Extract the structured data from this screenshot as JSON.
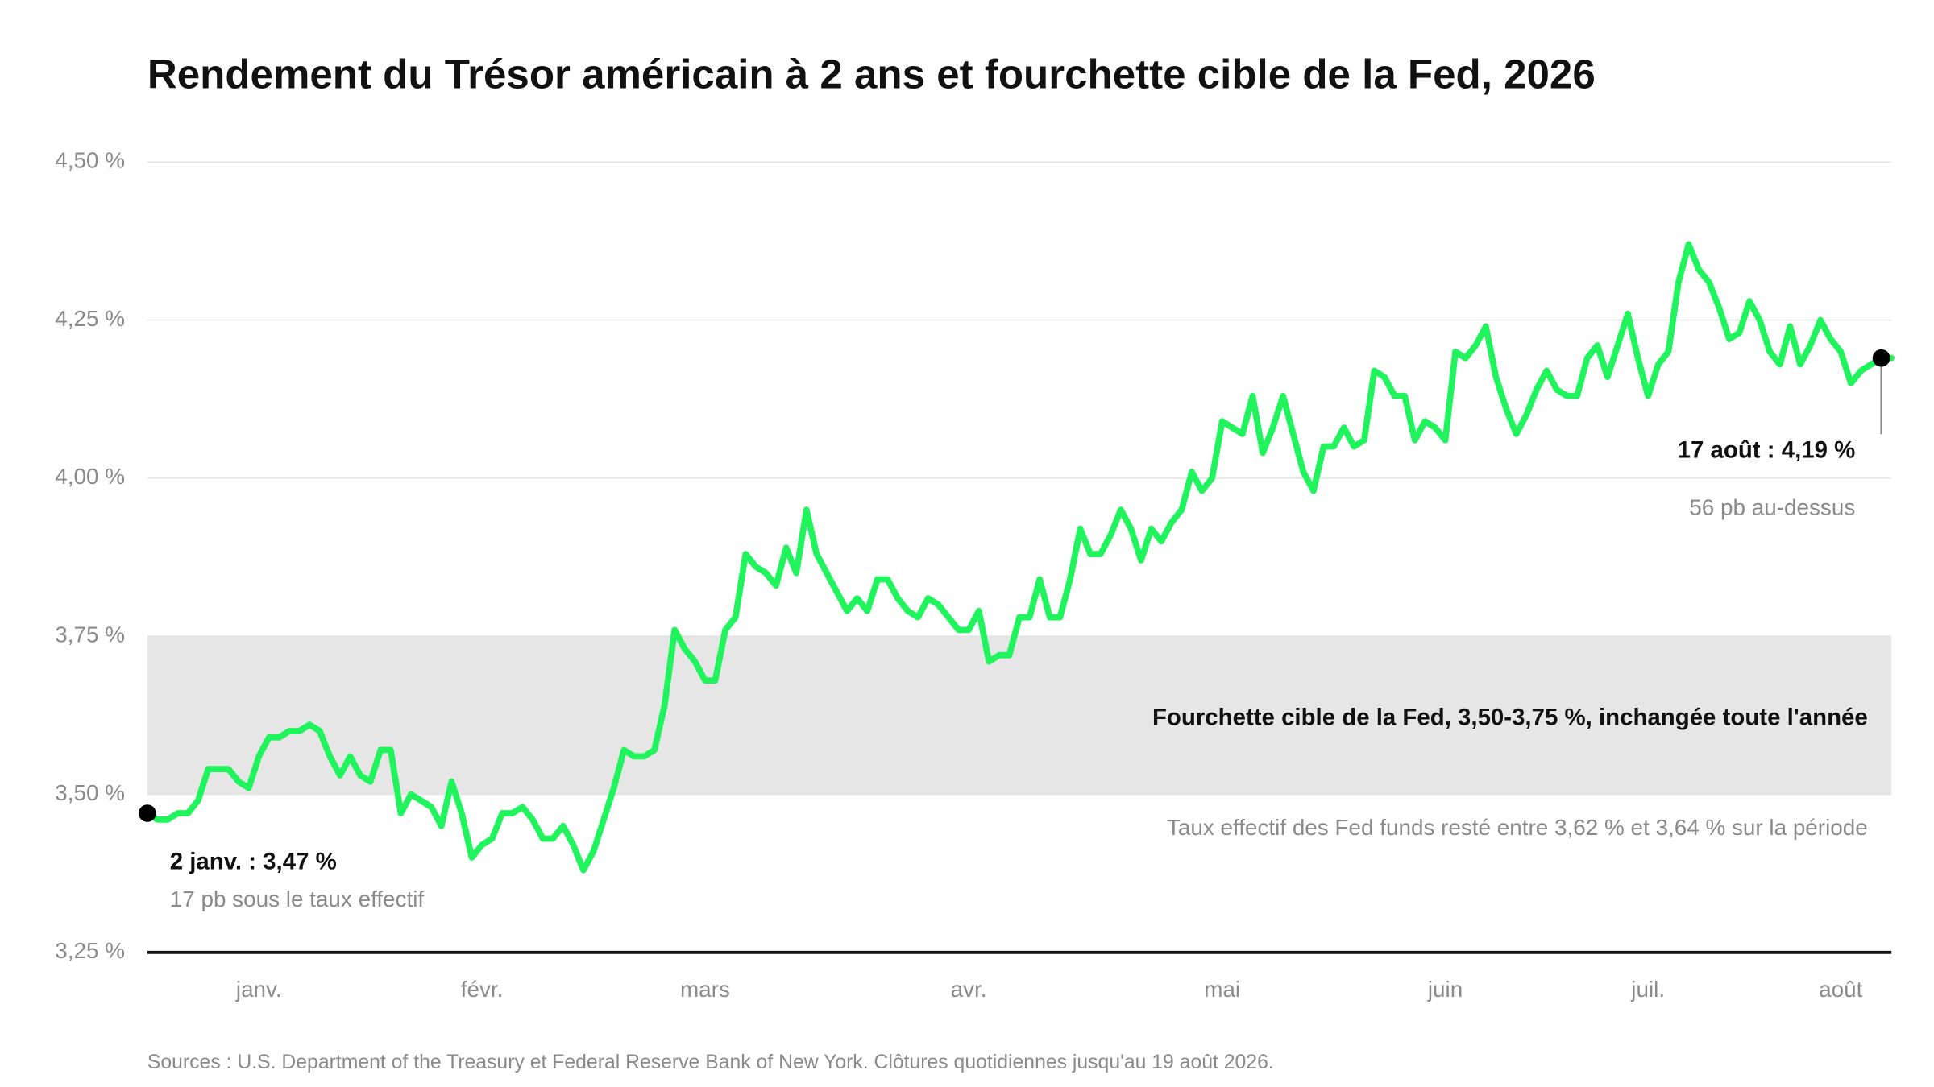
{
  "chart_data": {
    "type": "line",
    "title": "Rendement du Trésor américain à 2 ans et fourchette cible de la Fed, 2026",
    "categories": [
      null,
      null,
      null,
      null,
      null,
      null,
      null,
      null,
      null,
      null,
      null,
      "janv.",
      null,
      null,
      null,
      null,
      null,
      null,
      null,
      null,
      null,
      null,
      null,
      null,
      null,
      null,
      null,
      null,
      null,
      null,
      null,
      null,
      null,
      "févr.",
      null,
      null,
      null,
      null,
      null,
      null,
      null,
      null,
      null,
      null,
      null,
      null,
      null,
      null,
      null,
      null,
      null,
      null,
      null,
      null,
      null,
      "mars",
      null,
      null,
      null,
      null,
      null,
      null,
      null,
      null,
      null,
      null,
      null,
      null,
      null,
      null,
      null,
      null,
      null,
      null,
      null,
      null,
      null,
      null,
      null,
      null,
      null,
      "avr.",
      null,
      null,
      null,
      null,
      null,
      null,
      null,
      null,
      null,
      null,
      null,
      null,
      null,
      null,
      null,
      null,
      null,
      null,
      null,
      null,
      null,
      null,
      null,
      null,
      "mai",
      null,
      null,
      null,
      null,
      null,
      null,
      null,
      null,
      null,
      null,
      null,
      null,
      null,
      null,
      null,
      null,
      null,
      null,
      null,
      null,
      null,
      "juin",
      null,
      null,
      null,
      null,
      null,
      null,
      null,
      null,
      null,
      null,
      null,
      null,
      null,
      null,
      null,
      null,
      null,
      null,
      null,
      "juil.",
      null,
      null,
      null,
      null,
      null,
      null,
      null,
      null,
      null,
      null,
      null,
      null,
      null,
      null,
      null,
      null,
      null,
      null,
      "août",
      null,
      null,
      null,
      null,
      null
    ],
    "values": [
      3.47,
      3.46,
      3.46,
      3.47,
      3.47,
      3.49,
      3.54,
      3.54,
      3.54,
      3.52,
      3.51,
      3.56,
      3.59,
      3.59,
      3.6,
      3.6,
      3.61,
      3.6,
      3.56,
      3.53,
      3.56,
      3.53,
      3.52,
      3.57,
      3.57,
      3.47,
      3.5,
      3.49,
      3.48,
      3.45,
      3.52,
      3.47,
      3.4,
      3.42,
      3.43,
      3.47,
      3.47,
      3.48,
      3.46,
      3.43,
      3.43,
      3.45,
      3.42,
      3.38,
      3.41,
      3.46,
      3.51,
      3.57,
      3.56,
      3.56,
      3.57,
      3.64,
      3.76,
      3.73,
      3.71,
      3.68,
      3.68,
      3.76,
      3.78,
      3.88,
      3.86,
      3.85,
      3.83,
      3.89,
      3.85,
      3.95,
      3.88,
      3.85,
      3.82,
      3.79,
      3.81,
      3.79,
      3.84,
      3.84,
      3.81,
      3.79,
      3.78,
      3.81,
      3.8,
      3.78,
      3.76,
      3.76,
      3.79,
      3.71,
      3.72,
      3.72,
      3.78,
      3.78,
      3.84,
      3.78,
      3.78,
      3.84,
      3.92,
      3.88,
      3.88,
      3.91,
      3.95,
      3.92,
      3.87,
      3.92,
      3.9,
      3.93,
      3.95,
      4.01,
      3.98,
      4.0,
      4.09,
      4.08,
      4.07,
      4.13,
      4.04,
      4.08,
      4.13,
      4.07,
      4.01,
      3.98,
      4.05,
      4.05,
      4.08,
      4.05,
      4.06,
      4.17,
      4.16,
      4.13,
      4.13,
      4.06,
      4.09,
      4.08,
      4.06,
      4.2,
      4.19,
      4.21,
      4.24,
      4.16,
      4.11,
      4.07,
      4.1,
      4.14,
      4.17,
      4.14,
      4.13,
      4.13,
      4.19,
      4.21,
      4.16,
      4.21,
      4.26,
      4.19,
      4.13,
      4.18,
      4.2,
      4.31,
      4.37,
      4.33,
      4.31,
      4.27,
      4.22,
      4.23,
      4.28,
      4.25,
      4.2,
      4.18,
      4.24,
      4.18,
      4.21,
      4.25,
      4.22,
      4.2,
      4.15,
      4.17,
      4.18,
      4.19,
      4.19
    ],
    "color": "#1ff45c",
    "ylim": [
      3.25,
      4.5
    ],
    "yticks": [
      {
        "value": 3.25,
        "label": "3,25 %"
      },
      {
        "value": 3.5,
        "label": "3,50 %"
      },
      {
        "value": 3.75,
        "label": "3,75 %"
      },
      {
        "value": 4.0,
        "label": "4,00 %"
      },
      {
        "value": 4.25,
        "label": "4,25 %"
      },
      {
        "value": 4.5,
        "label": "4,50 %"
      }
    ],
    "grid": true,
    "band": {
      "range": [
        3.5,
        3.75
      ],
      "color": "#e6e6e6",
      "label": "Fourchette cible de la Fed, 3,50-3,75 %, inchangée toute l'année",
      "note": "Taux effectif des Fed funds resté entre 3,62 % et 3,64 % sur la période"
    },
    "annotations": [
      {
        "label": "2 janv. : 3,47 %",
        "note": "17 pb sous le taux effectif"
      },
      {
        "label": "17 août : 4,19 %",
        "note": "56 pb au-dessus"
      }
    ],
    "source": "Sources : U.S. Department of the Treasury et Federal Reserve Bank of New York. Clôtures quotidiennes jusqu'au 19 août 2026."
  }
}
